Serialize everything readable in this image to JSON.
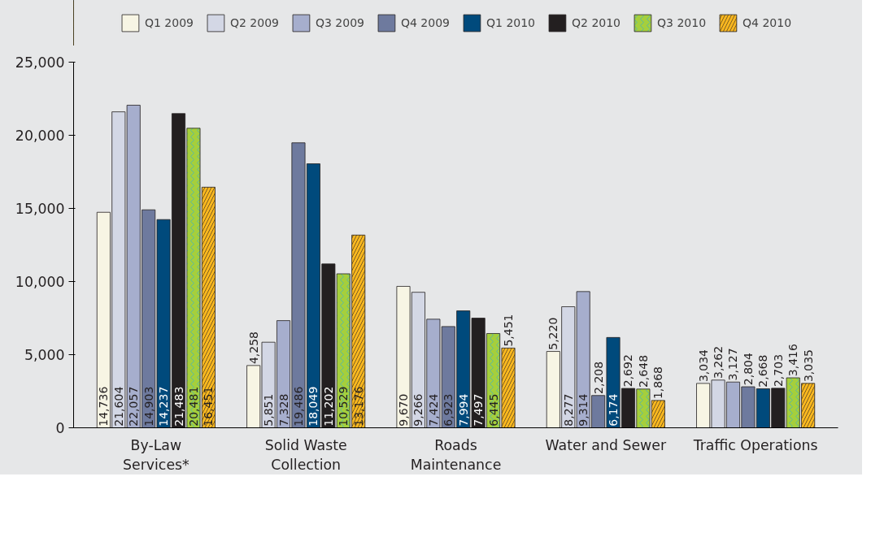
{
  "chart_data": {
    "type": "bar",
    "categories": [
      "By-Law\nServices*",
      "Solid Waste\nCollection",
      "Roads\nMaintenance",
      "Water and Sewer",
      "Traffic Operations"
    ],
    "series": [
      {
        "name": "Q1 2009",
        "color": "#f7f5e4",
        "values": [
          14736,
          4258,
          9670,
          5220,
          3034
        ],
        "value_labels": [
          "14,736",
          "4,258",
          "9,670",
          "5,220",
          "3,034"
        ]
      },
      {
        "name": "Q2 2009",
        "color": "#d3d7e5",
        "values": [
          21604,
          5851,
          9266,
          8277,
          3262
        ],
        "value_labels": [
          "21,604",
          "5,851",
          "9,266",
          "8,277",
          "3,262"
        ]
      },
      {
        "name": "Q3 2009",
        "color": "#a6aecd",
        "values": [
          22057,
          7328,
          7424,
          9314,
          3127
        ],
        "value_labels": [
          "22,057",
          "7,328",
          "7,424",
          "9,314",
          "3,127"
        ]
      },
      {
        "name": "Q4 2009",
        "color": "#6e7a9e",
        "values": [
          14903,
          19486,
          6923,
          2208,
          2804
        ],
        "value_labels": [
          "14,903",
          "19,486",
          "6,923",
          "2,208",
          "2,804"
        ]
      },
      {
        "name": "Q1 2010",
        "color": "#004a7c",
        "values": [
          14237,
          18049,
          7994,
          6174,
          2668
        ],
        "value_labels": [
          "14,237",
          "18,049",
          "7,994",
          "6,174",
          "2,668"
        ]
      },
      {
        "name": "Q2 2010",
        "color": "#231f20",
        "values": [
          21483,
          11202,
          7497,
          2692,
          2703
        ],
        "value_labels": [
          "21,483",
          "11,202",
          "7,497",
          "2,692",
          "2,703"
        ]
      },
      {
        "name": "Q3 2010",
        "color": "#a5cf3c",
        "values": [
          20481,
          10529,
          6445,
          2648,
          3416
        ],
        "value_labels": [
          "20,481",
          "10,529",
          "6,445",
          "2,648",
          "3,416"
        ]
      },
      {
        "name": "Q4 2010",
        "color": "#fbb81f",
        "values": [
          16451,
          13176,
          5451,
          1868,
          3035
        ],
        "value_labels": [
          "16,451",
          "13,176",
          "5,451",
          "1,868",
          "3,035"
        ]
      }
    ],
    "ylim": [
      0,
      25000
    ],
    "yticks": [
      0,
      {
        "value": 5000,
        "label": "5,000"
      },
      {
        "value": 10000,
        "label": "10,000"
      },
      {
        "value": 15000,
        "label": "15,000"
      },
      {
        "value": 20000,
        "label": "20,000"
      },
      {
        "value": 25000,
        "label": "25,000"
      }
    ],
    "legend": "top"
  }
}
